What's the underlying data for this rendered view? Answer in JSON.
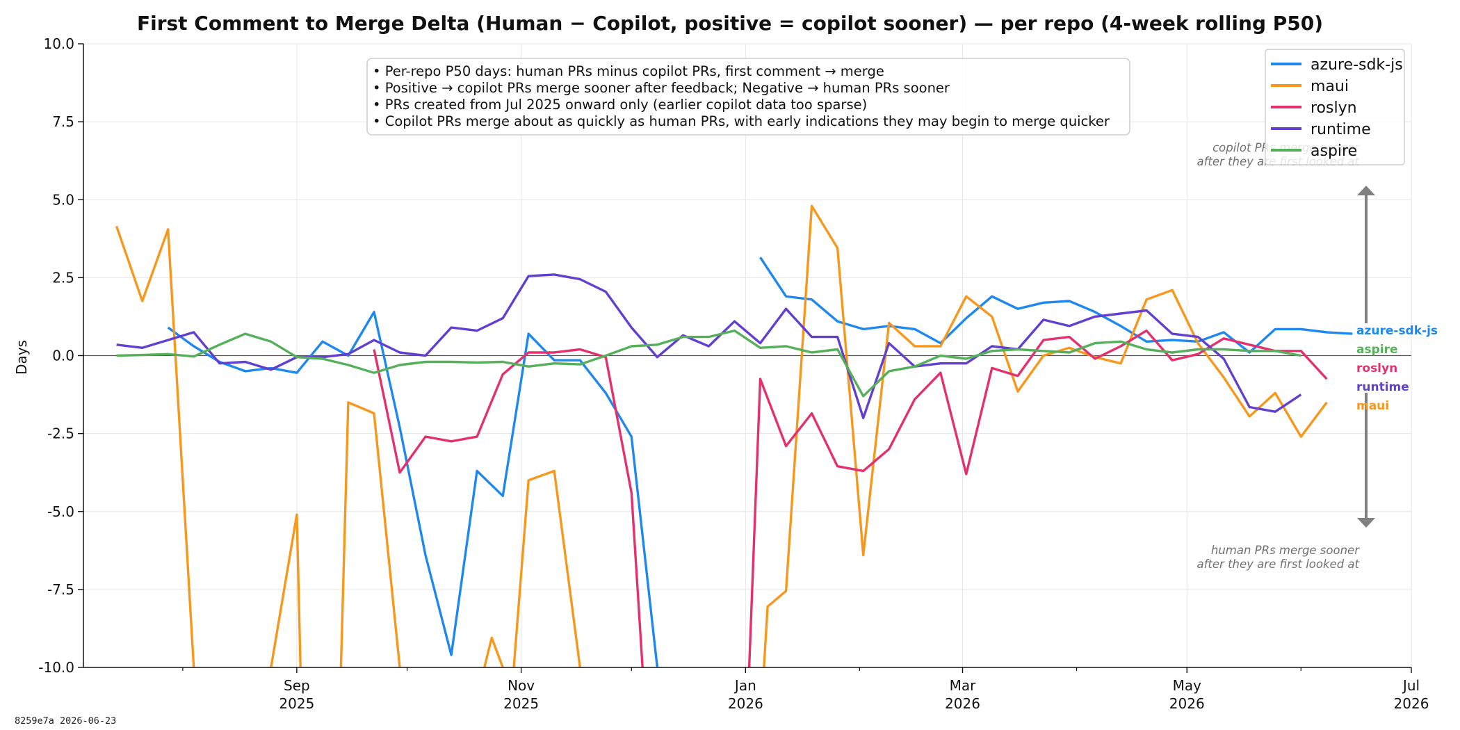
{
  "footer": {
    "text": "8259e7a  2026-06-23"
  },
  "chart_data": {
    "type": "line",
    "title": "First Comment to Merge Delta (Human − Copilot, positive = copilot sooner) — per repo (4-week rolling P50)",
    "ylabel": "Days",
    "ylim": [
      -10,
      10
    ],
    "xlim": [
      "2025-07-05",
      "2026-07-01"
    ],
    "y_ticks": [
      {
        "value": 10,
        "label": "10.0"
      },
      {
        "value": 7.5,
        "label": "7.5"
      },
      {
        "value": 5,
        "label": "5.0"
      },
      {
        "value": 2.5,
        "label": "2.5"
      },
      {
        "value": 0,
        "label": "0.0"
      },
      {
        "value": -2.5,
        "label": "-2.5"
      },
      {
        "value": -5,
        "label": "-5.0"
      },
      {
        "value": -7.5,
        "label": "-7.5"
      },
      {
        "value": -10,
        "label": "-10.0"
      }
    ],
    "x_ticks": [
      {
        "date": "2025-09-01",
        "month": "Sep",
        "year": "2025"
      },
      {
        "date": "2025-11-01",
        "month": "Nov",
        "year": "2025"
      },
      {
        "date": "2026-01-01",
        "month": "Jan",
        "year": "2026"
      },
      {
        "date": "2026-03-01",
        "month": "Mar",
        "year": "2026"
      },
      {
        "date": "2026-05-01",
        "month": "May",
        "year": "2026"
      },
      {
        "date": "2026-07-01",
        "month": "Jul",
        "year": "2026"
      }
    ],
    "x_minor_ticks": [
      "2025-08-01",
      "2025-10-01",
      "2025-12-01",
      "2026-02-01",
      "2026-04-01",
      "2026-06-01"
    ],
    "grid": true,
    "zero_line": true,
    "legend_position": "top-right",
    "annotation_box": [
      "• Per-repo P50 days: human PRs minus copilot PRs, first comment → merge",
      "• Positive → copilot PRs merge sooner after feedback; Negative → human PRs sooner",
      "• PRs created from Jul 2025 onward only (earlier copilot data too sparse)",
      "• Copilot PRs merge about as quickly as human PRs, with early indications they may begin to merge quicker"
    ],
    "arrow_labels": {
      "top": [
        "copilot PRs merge sooner",
        "after they are first looked at"
      ],
      "bottom": [
        "human PRs merge sooner",
        "after they are first looked at"
      ]
    },
    "x": [
      "2025-07-14",
      "2025-07-21",
      "2025-07-28",
      "2025-08-04",
      "2025-08-11",
      "2025-08-18",
      "2025-08-25",
      "2025-09-01",
      "2025-09-08",
      "2025-09-15",
      "2025-09-22",
      "2025-09-29",
      "2025-10-06",
      "2025-10-13",
      "2025-10-20",
      "2025-10-27",
      "2025-11-03",
      "2025-11-10",
      "2025-11-17",
      "2025-11-24",
      "2025-12-01",
      "2025-12-08",
      "2025-12-15",
      "2025-12-22",
      "2025-12-29",
      "2026-01-05",
      "2026-01-12",
      "2026-01-19",
      "2026-01-26",
      "2026-02-02",
      "2026-02-09",
      "2026-02-16",
      "2026-02-23",
      "2026-03-02",
      "2026-03-09",
      "2026-03-16",
      "2026-03-23",
      "2026-03-30",
      "2026-04-06",
      "2026-04-13",
      "2026-04-20",
      "2026-04-27",
      "2026-05-04",
      "2026-05-11",
      "2026-05-18",
      "2026-05-25",
      "2026-06-01",
      "2026-06-08",
      "2026-06-15"
    ],
    "series": [
      {
        "name": "azure-sdk-js",
        "color": "#1f88ee",
        "points": [
          [
            "2025-07-28",
            0.9
          ],
          [
            "2025-08-04",
            0.3
          ],
          [
            "2025-08-11",
            -0.2
          ],
          [
            "2025-08-18",
            -0.5
          ],
          [
            "2025-08-25",
            -0.4
          ],
          [
            "2025-09-01",
            -0.55
          ],
          [
            "2025-09-08",
            0.45
          ],
          [
            "2025-09-15",
            0.0
          ],
          [
            "2025-09-22",
            1.4
          ],
          [
            "2025-09-29",
            -2.3
          ],
          [
            "2025-10-06",
            -6.4
          ],
          [
            "2025-10-13",
            -9.6
          ],
          [
            "2025-10-20",
            -3.7
          ],
          [
            "2025-10-27",
            -4.5
          ],
          [
            "2025-11-03",
            0.7
          ],
          [
            "2025-11-10",
            -0.15
          ],
          [
            "2025-11-17",
            -0.15
          ],
          [
            "2025-11-24",
            -1.2
          ],
          [
            "2025-12-01",
            -2.6
          ],
          [
            "2025-12-08",
            -10.0
          ],
          null,
          [
            "2026-01-05",
            3.15
          ],
          [
            "2026-01-12",
            1.9
          ],
          [
            "2026-01-19",
            1.8
          ],
          [
            "2026-01-26",
            1.1
          ],
          [
            "2026-02-02",
            0.85
          ],
          [
            "2026-02-09",
            0.95
          ],
          [
            "2026-02-16",
            0.85
          ],
          [
            "2026-02-23",
            0.4
          ],
          [
            "2026-03-02",
            1.2
          ],
          [
            "2026-03-09",
            1.9
          ],
          [
            "2026-03-16",
            1.5
          ],
          [
            "2026-03-23",
            1.7
          ],
          [
            "2026-03-30",
            1.75
          ],
          [
            "2026-04-06",
            1.4
          ],
          [
            "2026-04-13",
            0.95
          ],
          [
            "2026-04-20",
            0.45
          ],
          [
            "2026-04-27",
            0.5
          ],
          [
            "2026-05-04",
            0.45
          ],
          [
            "2026-05-11",
            0.75
          ],
          [
            "2026-05-18",
            0.1
          ],
          [
            "2026-05-25",
            0.85
          ],
          [
            "2026-06-01",
            0.85
          ],
          [
            "2026-06-08",
            0.75
          ],
          [
            "2026-06-15",
            0.7
          ]
        ]
      },
      {
        "name": "maui",
        "color": "#f7981d",
        "points": [
          [
            "2025-07-14",
            4.15
          ],
          [
            "2025-07-21",
            1.75
          ],
          [
            "2025-07-28",
            4.05
          ],
          [
            "2025-08-04",
            -10.0
          ],
          null,
          [
            "2025-08-25",
            -10.0
          ],
          [
            "2025-09-01",
            -5.1
          ],
          [
            "2025-09-02",
            -10.0
          ],
          null,
          [
            "2025-09-13",
            -10.0
          ],
          [
            "2025-09-15",
            -1.5
          ],
          [
            "2025-09-22",
            -1.85
          ],
          [
            "2025-09-29",
            -10.0
          ],
          null,
          [
            "2025-10-22",
            -10.0
          ],
          [
            "2025-10-24",
            -9.05
          ],
          [
            "2025-10-27",
            -10.0
          ],
          null,
          [
            "2025-10-30",
            -10.0
          ],
          [
            "2025-11-03",
            -4.0
          ],
          [
            "2025-11-10",
            -3.7
          ],
          [
            "2025-11-17",
            -10.0
          ],
          null,
          [
            "2026-01-06",
            -10.0
          ],
          [
            "2026-01-07",
            -8.05
          ],
          [
            "2026-01-12",
            -7.55
          ],
          [
            "2026-01-19",
            4.8
          ],
          [
            "2026-01-26",
            3.45
          ],
          [
            "2026-02-02",
            -6.4
          ],
          [
            "2026-02-09",
            1.05
          ],
          [
            "2026-02-16",
            0.3
          ],
          [
            "2026-02-23",
            0.3
          ],
          [
            "2026-03-02",
            1.9
          ],
          [
            "2026-03-09",
            1.25
          ],
          [
            "2026-03-16",
            -1.15
          ],
          [
            "2026-03-23",
            0.0
          ],
          [
            "2026-03-30",
            0.25
          ],
          [
            "2026-04-06",
            -0.05
          ],
          [
            "2026-04-13",
            -0.25
          ],
          [
            "2026-04-20",
            1.8
          ],
          [
            "2026-04-27",
            2.1
          ],
          [
            "2026-05-04",
            0.4
          ],
          [
            "2026-05-11",
            -0.7
          ],
          [
            "2026-05-18",
            -1.95
          ],
          [
            "2026-05-25",
            -1.2
          ],
          [
            "2026-06-01",
            -2.6
          ],
          [
            "2026-06-08",
            -1.5
          ]
        ]
      },
      {
        "name": "roslyn",
        "color": "#e3316e",
        "points": [
          [
            "2025-09-22",
            0.2
          ],
          [
            "2025-09-29",
            -3.75
          ],
          [
            "2025-10-06",
            -2.6
          ],
          [
            "2025-10-13",
            -2.75
          ],
          [
            "2025-10-20",
            -2.6
          ],
          [
            "2025-10-27",
            -0.6
          ],
          [
            "2025-11-03",
            0.1
          ],
          [
            "2025-11-10",
            0.1
          ],
          [
            "2025-11-17",
            0.2
          ],
          [
            "2025-11-24",
            -0.05
          ],
          [
            "2025-12-01",
            -4.4
          ],
          [
            "2025-12-04",
            -10.0
          ],
          null,
          [
            "2026-01-02",
            -10.0
          ],
          [
            "2026-01-05",
            -0.75
          ],
          [
            "2026-01-12",
            -2.9
          ],
          [
            "2026-01-19",
            -1.85
          ],
          [
            "2026-01-26",
            -3.55
          ],
          [
            "2026-02-02",
            -3.7
          ],
          [
            "2026-02-09",
            -3.0
          ],
          [
            "2026-02-16",
            -1.4
          ],
          [
            "2026-02-23",
            -0.55
          ],
          [
            "2026-03-02",
            -3.8
          ],
          [
            "2026-03-09",
            -0.4
          ],
          [
            "2026-03-16",
            -0.65
          ],
          [
            "2026-03-23",
            0.5
          ],
          [
            "2026-03-30",
            0.6
          ],
          [
            "2026-04-06",
            -0.1
          ],
          [
            "2026-04-13",
            0.3
          ],
          [
            "2026-04-20",
            0.8
          ],
          [
            "2026-04-27",
            -0.15
          ],
          [
            "2026-05-04",
            0.05
          ],
          [
            "2026-05-11",
            0.55
          ],
          [
            "2026-05-18",
            0.35
          ],
          [
            "2026-05-25",
            0.15
          ],
          [
            "2026-06-01",
            0.15
          ],
          [
            "2026-06-08",
            -0.75
          ]
        ]
      },
      {
        "name": "runtime",
        "color": "#6240cf",
        "points": [
          [
            "2025-07-14",
            0.35
          ],
          [
            "2025-07-21",
            0.25
          ],
          [
            "2025-07-28",
            0.5
          ],
          [
            "2025-08-04",
            0.75
          ],
          [
            "2025-08-11",
            -0.25
          ],
          [
            "2025-08-18",
            -0.2
          ],
          [
            "2025-08-25",
            -0.45
          ],
          [
            "2025-09-01",
            -0.05
          ],
          [
            "2025-09-08",
            -0.05
          ],
          [
            "2025-09-15",
            0.05
          ],
          [
            "2025-09-22",
            0.5
          ],
          [
            "2025-09-29",
            0.1
          ],
          [
            "2025-10-06",
            0.0
          ],
          [
            "2025-10-13",
            0.9
          ],
          [
            "2025-10-20",
            0.8
          ],
          [
            "2025-10-27",
            1.2
          ],
          [
            "2025-11-03",
            2.55
          ],
          [
            "2025-11-10",
            2.6
          ],
          [
            "2025-11-17",
            2.45
          ],
          [
            "2025-11-24",
            2.05
          ],
          [
            "2025-12-01",
            0.9
          ],
          [
            "2025-12-08",
            -0.05
          ],
          [
            "2025-12-15",
            0.65
          ],
          [
            "2025-12-22",
            0.3
          ],
          [
            "2025-12-29",
            1.1
          ],
          [
            "2026-01-05",
            0.4
          ],
          [
            "2026-01-12",
            1.5
          ],
          [
            "2026-01-19",
            0.6
          ],
          [
            "2026-01-26",
            0.6
          ],
          [
            "2026-02-02",
            -2.0
          ],
          [
            "2026-02-09",
            0.4
          ],
          [
            "2026-02-16",
            -0.35
          ],
          [
            "2026-02-23",
            -0.25
          ],
          [
            "2026-03-02",
            -0.25
          ],
          [
            "2026-03-09",
            0.3
          ],
          [
            "2026-03-16",
            0.2
          ],
          [
            "2026-03-23",
            1.15
          ],
          [
            "2026-03-30",
            0.95
          ],
          [
            "2026-04-06",
            1.25
          ],
          [
            "2026-04-13",
            1.35
          ],
          [
            "2026-04-20",
            1.45
          ],
          [
            "2026-04-27",
            0.7
          ],
          [
            "2026-05-04",
            0.6
          ],
          [
            "2026-05-11",
            -0.1
          ],
          [
            "2026-05-18",
            -1.65
          ],
          [
            "2026-05-25",
            -1.8
          ],
          [
            "2026-06-01",
            -1.25
          ]
        ]
      },
      {
        "name": "aspire",
        "color": "#56b05a",
        "points": [
          [
            "2025-07-14",
            0.0
          ],
          [
            "2025-07-21",
            0.02
          ],
          [
            "2025-07-28",
            0.05
          ],
          [
            "2025-08-04",
            -0.03
          ],
          [
            "2025-08-11",
            0.35
          ],
          [
            "2025-08-18",
            0.7
          ],
          [
            "2025-08-25",
            0.45
          ],
          [
            "2025-09-01",
            -0.05
          ],
          [
            "2025-09-08",
            -0.1
          ],
          [
            "2025-09-15",
            -0.3
          ],
          [
            "2025-09-22",
            -0.55
          ],
          [
            "2025-09-29",
            -0.3
          ],
          [
            "2025-10-06",
            -0.2
          ],
          [
            "2025-10-13",
            -0.2
          ],
          [
            "2025-10-20",
            -0.22
          ],
          [
            "2025-10-27",
            -0.2
          ],
          [
            "2025-11-03",
            -0.35
          ],
          [
            "2025-11-10",
            -0.25
          ],
          [
            "2025-11-17",
            -0.28
          ],
          [
            "2025-11-24",
            0.0
          ],
          [
            "2025-12-01",
            0.3
          ],
          [
            "2025-12-08",
            0.35
          ],
          [
            "2025-12-15",
            0.6
          ],
          [
            "2025-12-22",
            0.6
          ],
          [
            "2025-12-29",
            0.8
          ],
          [
            "2026-01-05",
            0.25
          ],
          [
            "2026-01-12",
            0.3
          ],
          [
            "2026-01-19",
            0.1
          ],
          [
            "2026-01-26",
            0.2
          ],
          [
            "2026-02-02",
            -1.3
          ],
          [
            "2026-02-09",
            -0.5
          ],
          [
            "2026-02-16",
            -0.35
          ],
          [
            "2026-02-23",
            0.0
          ],
          [
            "2026-03-02",
            -0.1
          ],
          [
            "2026-03-09",
            0.15
          ],
          [
            "2026-03-16",
            0.2
          ],
          [
            "2026-03-23",
            0.15
          ],
          [
            "2026-03-30",
            0.1
          ],
          [
            "2026-04-06",
            0.4
          ],
          [
            "2026-04-13",
            0.45
          ],
          [
            "2026-04-20",
            0.2
          ],
          [
            "2026-04-27",
            0.1
          ],
          [
            "2026-05-04",
            0.2
          ],
          [
            "2026-05-11",
            0.2
          ],
          [
            "2026-05-18",
            0.15
          ],
          [
            "2026-05-25",
            0.15
          ],
          [
            "2026-06-01",
            0.0
          ]
        ]
      }
    ],
    "end_labels_order": [
      "azure-sdk-js",
      "aspire",
      "roslyn",
      "runtime",
      "maui"
    ]
  }
}
